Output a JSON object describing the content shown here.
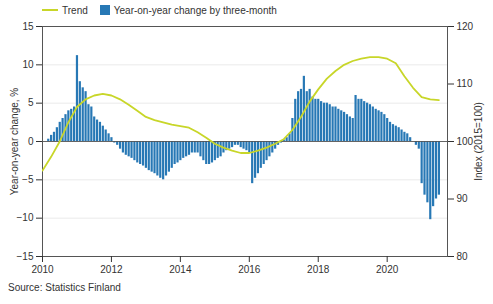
{
  "chart_data": {
    "type": "bar",
    "ylabel": "Year-on-year change, %",
    "y2label": "Index (2015=100)",
    "caption": "Source: Statistics Finland",
    "xlim": [
      2010.0,
      2021.75
    ],
    "xticks": [
      2010,
      2012,
      2014,
      2016,
      2018,
      2020
    ],
    "ylim": [
      -15,
      15
    ],
    "yticks": [
      -15,
      -10,
      -5,
      0,
      5,
      10,
      15
    ],
    "y2lim": [
      80,
      120
    ],
    "y2ticks": [
      80,
      90,
      100,
      110,
      120
    ],
    "grid": true,
    "legend": "upper left",
    "series": [
      {
        "name": "Trend",
        "type": "line",
        "color": "#c8d629",
        "x": [
          2010.0,
          2010.25,
          2010.5,
          2010.75,
          2011.0,
          2011.25,
          2011.5,
          2011.75,
          2012.0,
          2012.25,
          2012.5,
          2012.75,
          2013.0,
          2013.25,
          2013.5,
          2013.75,
          2014.0,
          2014.25,
          2014.5,
          2014.75,
          2015.0,
          2015.25,
          2015.5,
          2015.75,
          2016.0,
          2016.25,
          2016.5,
          2016.75,
          2017.0,
          2017.25,
          2017.5,
          2017.75,
          2018.0,
          2018.25,
          2018.5,
          2018.75,
          2019.0,
          2019.25,
          2019.5,
          2019.75,
          2020.0,
          2020.25,
          2020.5,
          2020.75,
          2021.0,
          2021.25,
          2021.5
        ],
        "values": [
          -3.8,
          -2.0,
          0.0,
          2.5,
          4.5,
          5.5,
          6.0,
          6.2,
          6.0,
          5.5,
          4.8,
          4.0,
          3.2,
          2.8,
          2.5,
          2.2,
          2.0,
          1.8,
          1.2,
          0.5,
          -0.3,
          -0.8,
          -1.2,
          -1.5,
          -1.5,
          -1.2,
          -0.8,
          -0.3,
          0.3,
          1.5,
          3.2,
          5.2,
          6.8,
          8.2,
          9.2,
          10.0,
          10.5,
          10.8,
          11.0,
          11.0,
          10.8,
          10.2,
          8.5,
          7.0,
          5.8,
          5.5,
          5.4
        ]
      },
      {
        "name": "Year-on-year change by three-month",
        "type": "bar",
        "color": "#2778b5",
        "x": [
          2010.167,
          2010.25,
          2010.333,
          2010.417,
          2010.5,
          2010.583,
          2010.667,
          2010.75,
          2010.833,
          2010.917,
          2011.0,
          2011.083,
          2011.167,
          2011.25,
          2011.333,
          2011.417,
          2011.5,
          2011.583,
          2011.667,
          2011.75,
          2011.833,
          2011.917,
          2012.0,
          2012.083,
          2012.167,
          2012.25,
          2012.333,
          2012.417,
          2012.5,
          2012.583,
          2012.667,
          2012.75,
          2012.833,
          2012.917,
          2013.0,
          2013.083,
          2013.167,
          2013.25,
          2013.333,
          2013.417,
          2013.5,
          2013.583,
          2013.667,
          2013.75,
          2013.833,
          2013.917,
          2014.0,
          2014.083,
          2014.167,
          2014.25,
          2014.333,
          2014.417,
          2014.5,
          2014.583,
          2014.667,
          2014.75,
          2014.833,
          2014.917,
          2015.0,
          2015.083,
          2015.167,
          2015.25,
          2015.333,
          2015.417,
          2015.5,
          2015.583,
          2015.667,
          2015.75,
          2015.833,
          2015.917,
          2016.0,
          2016.083,
          2016.167,
          2016.25,
          2016.333,
          2016.417,
          2016.5,
          2016.583,
          2016.667,
          2016.75,
          2016.833,
          2016.917,
          2017.0,
          2017.083,
          2017.167,
          2017.25,
          2017.333,
          2017.417,
          2017.5,
          2017.583,
          2017.667,
          2017.75,
          2017.833,
          2017.917,
          2018.0,
          2018.083,
          2018.167,
          2018.25,
          2018.333,
          2018.417,
          2018.5,
          2018.583,
          2018.667,
          2018.75,
          2018.833,
          2018.917,
          2019.0,
          2019.083,
          2019.167,
          2019.25,
          2019.333,
          2019.417,
          2019.5,
          2019.583,
          2019.667,
          2019.75,
          2019.833,
          2019.917,
          2020.0,
          2020.083,
          2020.167,
          2020.25,
          2020.333,
          2020.417,
          2020.5,
          2020.583,
          2020.667,
          2020.75,
          2020.833,
          2020.917,
          2021.0,
          2021.083,
          2021.167,
          2021.25,
          2021.333,
          2021.417,
          2021.5
        ],
        "values": [
          0.3,
          0.8,
          1.2,
          1.8,
          2.5,
          3.0,
          3.5,
          4.0,
          4.2,
          4.5,
          11.2,
          7.8,
          7.0,
          6.5,
          4.8,
          4.5,
          3.2,
          2.8,
          2.5,
          2.0,
          1.5,
          1.0,
          0.5,
          -0.2,
          -0.5,
          -1.0,
          -1.5,
          -1.8,
          -2.0,
          -2.2,
          -2.5,
          -2.8,
          -3.0,
          -3.2,
          -3.5,
          -3.8,
          -4.0,
          -4.2,
          -4.5,
          -4.8,
          -5.0,
          -4.5,
          -4.0,
          -3.5,
          -3.0,
          -2.8,
          -2.5,
          -2.2,
          -2.0,
          -1.8,
          -1.5,
          -1.5,
          -1.5,
          -2.0,
          -2.5,
          -3.0,
          -3.0,
          -2.8,
          -2.5,
          -2.2,
          -2.0,
          -1.5,
          -1.2,
          -1.0,
          -0.8,
          -0.5,
          -0.5,
          -0.8,
          -1.0,
          -1.2,
          -1.5,
          -5.5,
          -4.8,
          -4.2,
          -3.5,
          -3.0,
          -2.5,
          -2.0,
          -1.5,
          -1.0,
          -0.5,
          -0.2,
          0.2,
          0.5,
          1.0,
          3.0,
          5.5,
          6.5,
          6.8,
          8.5,
          6.5,
          6.8,
          5.8,
          5.5,
          5.5,
          5.2,
          5.0,
          5.0,
          4.8,
          4.5,
          4.5,
          4.2,
          4.0,
          3.8,
          3.5,
          3.2,
          3.0,
          6.0,
          5.5,
          5.5,
          5.2,
          5.0,
          4.8,
          4.5,
          4.2,
          4.0,
          3.8,
          3.5,
          3.0,
          2.5,
          2.2,
          2.0,
          1.8,
          1.5,
          1.2,
          1.0,
          0.5,
          0.0,
          -0.5,
          -1.0,
          -5.5,
          -7.0,
          -8.0,
          -10.2,
          -8.5,
          -7.5,
          -7.0
        ]
      }
    ]
  }
}
